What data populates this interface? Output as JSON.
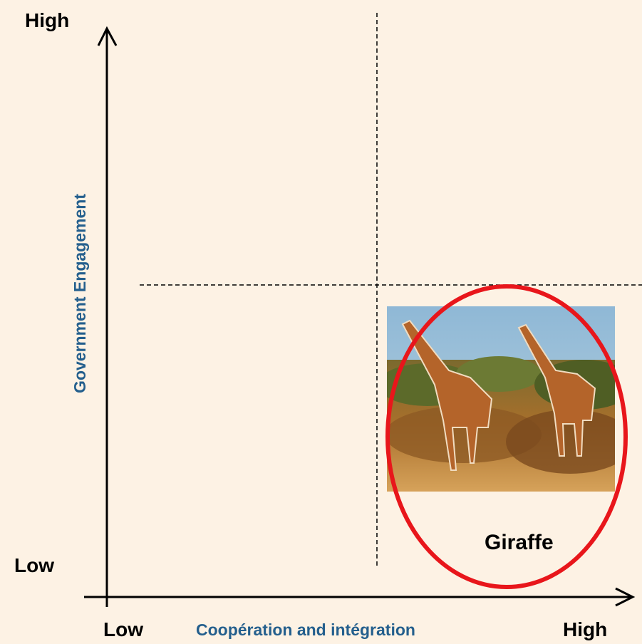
{
  "axes": {
    "y_high": "High",
    "y_low": "Low",
    "x_low": "Low",
    "x_high": "High",
    "x_label": "Coopération and intégration",
    "y_label": "Government Engagement"
  },
  "quadrant": {
    "label": "Giraffe"
  }
}
